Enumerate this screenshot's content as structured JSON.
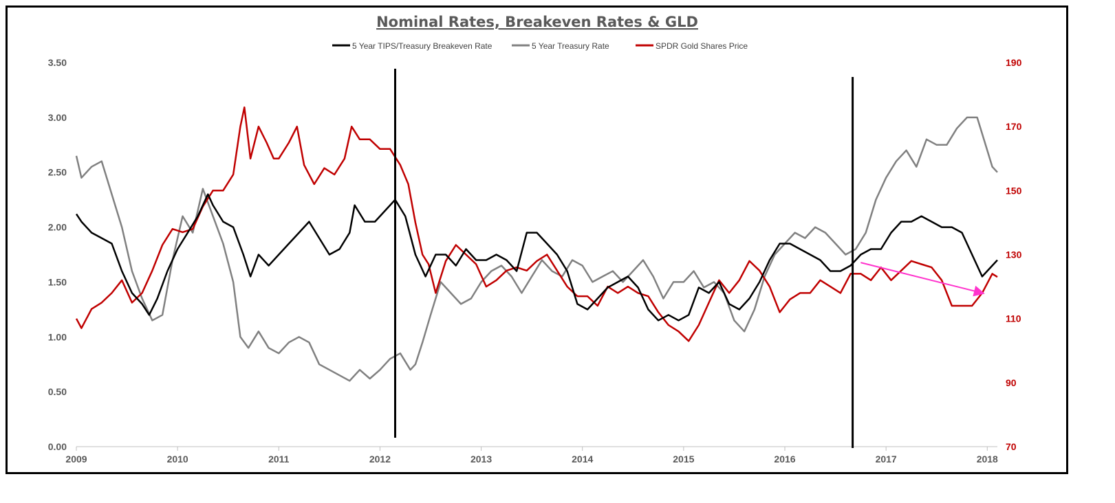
{
  "chart_data": {
    "type": "line",
    "title": "Nominal Rates, Breakeven Rates & GLD",
    "xlabel": "",
    "ylabel": "",
    "xlim": [
      2009.0,
      2018.1
    ],
    "ylim_left": [
      0.0,
      3.5
    ],
    "ylim_right": [
      70,
      190
    ],
    "grid": false,
    "legend_position": "top-center",
    "x_ticks": [
      "2009",
      "2010",
      "2011",
      "2012",
      "2013",
      "2014",
      "2015",
      "2016",
      "2017",
      "2018"
    ],
    "y_ticks_left": [
      "0.00",
      "0.50",
      "1.00",
      "1.50",
      "2.00",
      "2.50",
      "3.00",
      "3.50"
    ],
    "y_ticks_right": [
      "70",
      "90",
      "110",
      "130",
      "150",
      "170",
      "190"
    ],
    "series": [
      {
        "name": "5 Year TIPS/Treasury Breakeven Rate",
        "axis": "left",
        "color": "#000000",
        "x": [
          2009.0,
          2009.05,
          2009.15,
          2009.25,
          2009.35,
          2009.45,
          2009.55,
          2009.65,
          2009.72,
          2009.8,
          2009.9,
          2010.0,
          2010.1,
          2010.2,
          2010.3,
          2010.35,
          2010.45,
          2010.55,
          2010.65,
          2010.72,
          2010.8,
          2010.9,
          2011.0,
          2011.1,
          2011.2,
          2011.3,
          2011.4,
          2011.5,
          2011.6,
          2011.7,
          2011.75,
          2011.85,
          2011.95,
          2012.05,
          2012.15,
          2012.25,
          2012.35,
          2012.45,
          2012.55,
          2012.65,
          2012.75,
          2012.85,
          2012.95,
          2013.05,
          2013.15,
          2013.25,
          2013.35,
          2013.45,
          2013.55,
          2013.65,
          2013.75,
          2013.85,
          2013.95,
          2014.05,
          2014.15,
          2014.25,
          2014.35,
          2014.45,
          2014.55,
          2014.65,
          2014.75,
          2014.85,
          2014.95,
          2015.05,
          2015.15,
          2015.25,
          2015.35,
          2015.45,
          2015.55,
          2015.65,
          2015.75,
          2015.85,
          2015.95,
          2016.05,
          2016.15,
          2016.25,
          2016.35,
          2016.45,
          2016.55,
          2016.65,
          2016.75,
          2016.85,
          2016.95,
          2017.05,
          2017.15,
          2017.25,
          2017.35,
          2017.45,
          2017.55,
          2017.65,
          2017.75,
          2017.85,
          2017.95,
          2018.05,
          2018.1
        ],
        "values": [
          2.12,
          2.05,
          1.95,
          1.9,
          1.85,
          1.6,
          1.4,
          1.3,
          1.2,
          1.35,
          1.6,
          1.8,
          1.95,
          2.1,
          2.3,
          2.2,
          2.05,
          2.0,
          1.75,
          1.55,
          1.75,
          1.65,
          1.75,
          1.85,
          1.95,
          2.05,
          1.9,
          1.75,
          1.8,
          1.95,
          2.2,
          2.05,
          2.05,
          2.15,
          2.25,
          2.1,
          1.75,
          1.55,
          1.75,
          1.75,
          1.65,
          1.8,
          1.7,
          1.7,
          1.75,
          1.7,
          1.6,
          1.95,
          1.95,
          1.85,
          1.75,
          1.6,
          1.3,
          1.25,
          1.35,
          1.45,
          1.5,
          1.55,
          1.45,
          1.25,
          1.15,
          1.2,
          1.15,
          1.2,
          1.45,
          1.4,
          1.5,
          1.3,
          1.25,
          1.35,
          1.5,
          1.7,
          1.85,
          1.85,
          1.8,
          1.75,
          1.7,
          1.6,
          1.6,
          1.65,
          1.75,
          1.8,
          1.8,
          1.95,
          2.05,
          2.05,
          2.1,
          2.05,
          2.0,
          2.0,
          1.95,
          1.75,
          1.55,
          1.65,
          1.7
        ]
      },
      {
        "name": "5 Year Treasury Rate",
        "axis": "left",
        "color": "#808080",
        "x": [
          2009.0,
          2009.05,
          2009.15,
          2009.25,
          2009.35,
          2009.45,
          2009.55,
          2009.65,
          2009.75,
          2009.85,
          2009.95,
          2010.05,
          2010.15,
          2010.25,
          2010.35,
          2010.45,
          2010.55,
          2010.62,
          2010.7,
          2010.8,
          2010.9,
          2011.0,
          2011.1,
          2011.2,
          2011.3,
          2011.4,
          2011.5,
          2011.6,
          2011.7,
          2011.8,
          2011.9,
          2012.0,
          2012.1,
          2012.2,
          2012.3,
          2012.35,
          2012.42,
          2012.5,
          2012.6,
          2012.7,
          2012.8,
          2012.9,
          2013.0,
          2013.1,
          2013.2,
          2013.3,
          2013.4,
          2013.5,
          2013.6,
          2013.7,
          2013.8,
          2013.9,
          2014.0,
          2014.1,
          2014.2,
          2014.3,
          2014.4,
          2014.5,
          2014.6,
          2014.7,
          2014.8,
          2014.9,
          2015.0,
          2015.1,
          2015.2,
          2015.3,
          2015.4,
          2015.5,
          2015.6,
          2015.7,
          2015.8,
          2015.9,
          2016.0,
          2016.1,
          2016.2,
          2016.3,
          2016.4,
          2016.5,
          2016.6,
          2016.7,
          2016.8,
          2016.9,
          2017.0,
          2017.1,
          2017.2,
          2017.3,
          2017.4,
          2017.5,
          2017.6,
          2017.7,
          2017.8,
          2017.9,
          2018.0,
          2018.05,
          2018.1
        ],
        "values": [
          2.65,
          2.45,
          2.55,
          2.6,
          2.3,
          2.0,
          1.6,
          1.35,
          1.15,
          1.2,
          1.7,
          2.1,
          1.95,
          2.35,
          2.1,
          1.85,
          1.5,
          1.0,
          0.9,
          1.05,
          0.9,
          0.85,
          0.95,
          1.0,
          0.95,
          0.75,
          0.7,
          0.65,
          0.6,
          0.7,
          0.62,
          0.7,
          0.8,
          0.85,
          0.7,
          0.75,
          0.95,
          1.2,
          1.5,
          1.4,
          1.3,
          1.35,
          1.5,
          1.6,
          1.65,
          1.55,
          1.4,
          1.55,
          1.7,
          1.6,
          1.55,
          1.7,
          1.65,
          1.5,
          1.55,
          1.6,
          1.5,
          1.6,
          1.7,
          1.55,
          1.35,
          1.5,
          1.5,
          1.6,
          1.45,
          1.5,
          1.4,
          1.15,
          1.05,
          1.25,
          1.55,
          1.75,
          1.85,
          1.95,
          1.9,
          2.0,
          1.95,
          1.85,
          1.75,
          1.8,
          1.95,
          2.25,
          2.45,
          2.6,
          2.7,
          2.55,
          2.8,
          2.75,
          2.75,
          2.9,
          3.0,
          3.0,
          2.7,
          2.55,
          2.5
        ]
      },
      {
        "name": "SPDR Gold Shares Price",
        "axis": "right",
        "color": "#c00000",
        "x": [
          2009.0,
          2009.05,
          2009.15,
          2009.25,
          2009.35,
          2009.45,
          2009.55,
          2009.65,
          2009.75,
          2009.85,
          2009.95,
          2010.05,
          2010.15,
          2010.25,
          2010.35,
          2010.45,
          2010.55,
          2010.62,
          2010.66,
          2010.72,
          2010.8,
          2010.88,
          2010.95,
          2011.0,
          2011.1,
          2011.18,
          2011.25,
          2011.35,
          2011.45,
          2011.55,
          2011.65,
          2011.72,
          2011.8,
          2011.9,
          2012.0,
          2012.1,
          2012.2,
          2012.28,
          2012.35,
          2012.42,
          2012.48,
          2012.55,
          2012.65,
          2012.75,
          2012.85,
          2012.95,
          2013.05,
          2013.15,
          2013.25,
          2013.35,
          2013.45,
          2013.55,
          2013.65,
          2013.75,
          2013.85,
          2013.95,
          2014.05,
          2014.15,
          2014.25,
          2014.35,
          2014.45,
          2014.55,
          2014.65,
          2014.75,
          2014.85,
          2014.95,
          2015.05,
          2015.15,
          2015.25,
          2015.35,
          2015.45,
          2015.55,
          2015.65,
          2015.75,
          2015.85,
          2015.95,
          2016.05,
          2016.15,
          2016.25,
          2016.35,
          2016.45,
          2016.55,
          2016.65,
          2016.75,
          2016.85,
          2016.95,
          2017.05,
          2017.15,
          2017.25,
          2017.35,
          2017.45,
          2017.55,
          2017.65,
          2017.75,
          2017.85,
          2017.95,
          2018.05,
          2018.1
        ],
        "values": [
          110,
          107,
          113,
          115,
          118,
          122,
          115,
          118,
          125,
          133,
          138,
          137,
          138,
          145,
          150,
          150,
          155,
          170,
          176,
          160,
          170,
          165,
          160,
          160,
          165,
          170,
          158,
          152,
          157,
          155,
          160,
          170,
          166,
          166,
          163,
          163,
          158,
          152,
          140,
          130,
          127,
          118,
          128,
          133,
          130,
          127,
          120,
          122,
          125,
          126,
          125,
          128,
          130,
          125,
          120,
          117,
          117,
          114,
          120,
          118,
          120,
          118,
          117,
          112,
          108,
          106,
          103,
          108,
          115,
          122,
          118,
          122,
          128,
          125,
          120,
          112,
          116,
          118,
          118,
          122,
          120,
          118,
          124,
          124,
          122,
          126,
          122,
          125,
          128,
          127,
          126,
          122,
          114,
          114,
          114,
          118,
          124,
          123
        ]
      }
    ],
    "vertical_lines": [
      2012.15,
      2016.67
    ],
    "annotations": [
      {
        "type": "arrow",
        "color": "#ff33cc",
        "from": [
          2016.75,
          127.5
        ],
        "to": [
          2017.95,
          118
        ]
      }
    ]
  }
}
